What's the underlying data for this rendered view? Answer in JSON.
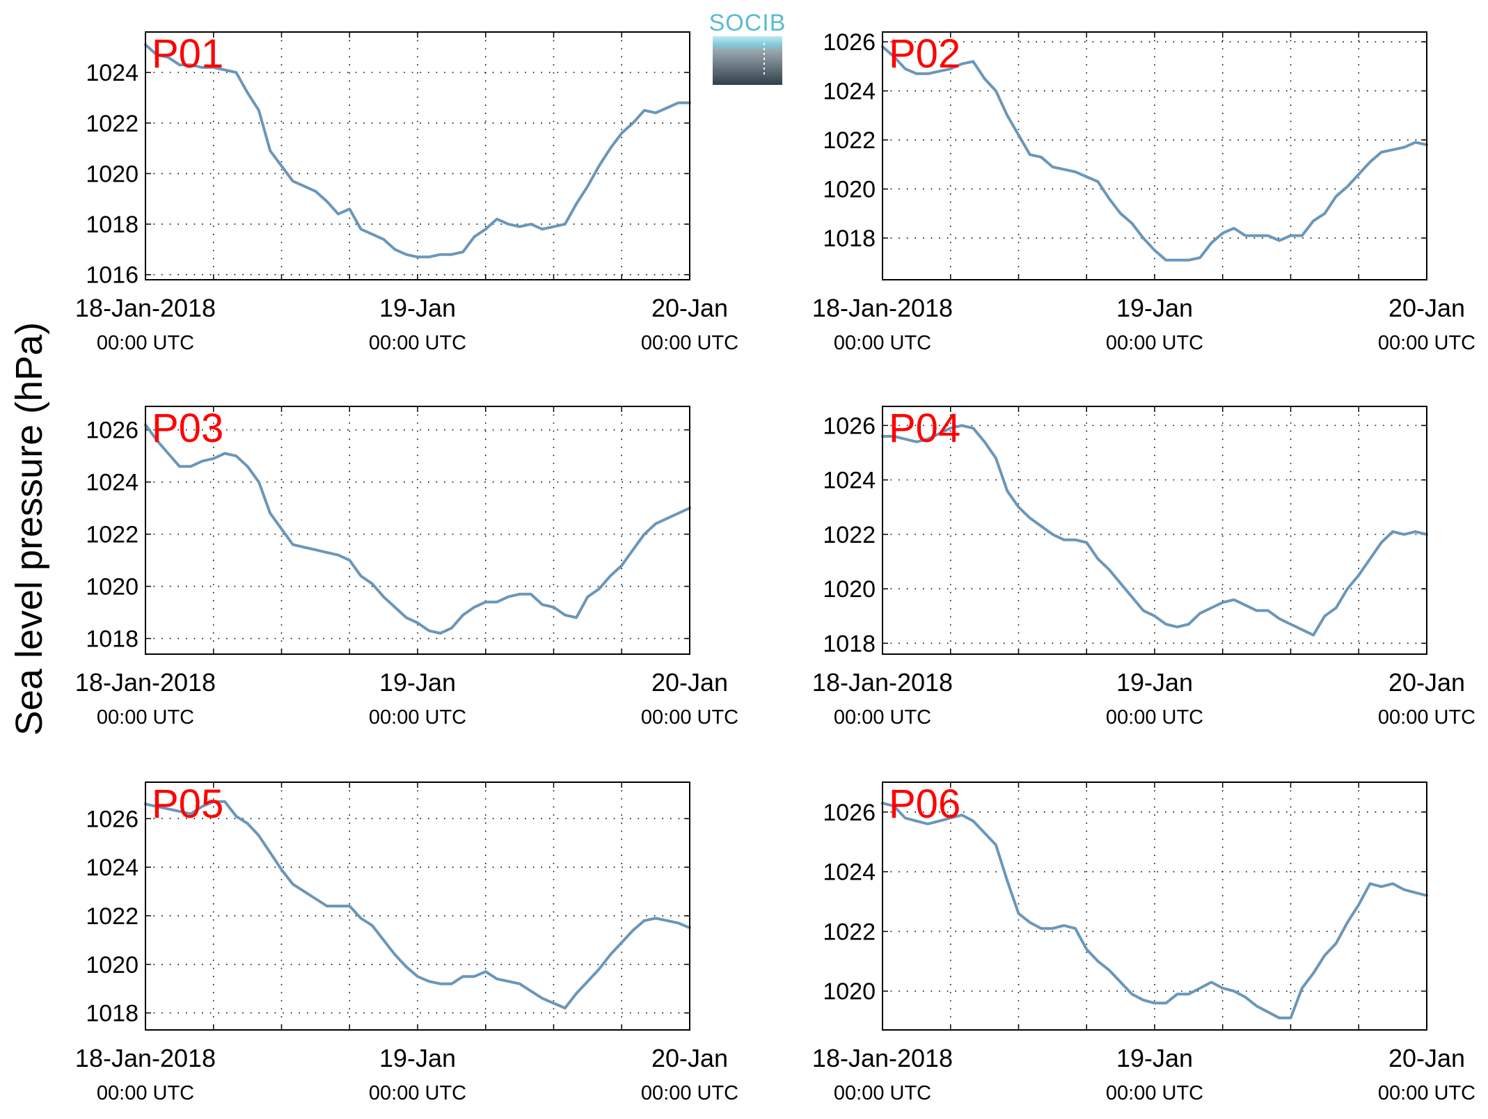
{
  "figure": {
    "ylabel": "Sea level pressure (hPa)",
    "line_color": "#6a97ba",
    "label_color": "#ff0000",
    "logo": {
      "text": "SOCIB",
      "color": "#5bbbd0"
    }
  },
  "chart_data": [
    {
      "type": "line",
      "label": "P01",
      "x_tick_labels": [
        [
          "18-Jan-2018",
          "00:00 UTC"
        ],
        [
          "19-Jan",
          "00:00 UTC"
        ],
        [
          "20-Jan",
          "00:00 UTC"
        ]
      ],
      "yticks": [
        1016,
        1018,
        1020,
        1022,
        1024
      ],
      "ylim": [
        1015.8,
        1025.6
      ],
      "xlim": [
        0,
        48
      ],
      "grid": true,
      "series": [
        {
          "x": [
            0,
            1,
            2,
            3,
            4,
            5,
            6,
            8,
            9,
            10,
            11,
            12,
            13,
            14,
            15,
            16,
            17,
            18,
            19,
            20,
            21,
            22,
            23,
            24,
            25,
            26,
            27,
            28,
            29,
            30,
            31,
            32,
            33,
            34,
            35,
            36,
            37,
            38,
            39,
            40,
            41,
            42,
            43,
            44,
            45,
            46,
            47,
            48
          ],
          "y": [
            1025.1,
            1024.7,
            1024.6,
            1024.3,
            1024.3,
            1024.2,
            1024.2,
            1024.0,
            1023.2,
            1022.5,
            1020.9,
            1020.3,
            1019.7,
            1019.5,
            1019.3,
            1018.9,
            1018.4,
            1018.6,
            1017.8,
            1017.6,
            1017.4,
            1017.0,
            1016.8,
            1016.7,
            1016.7,
            1016.8,
            1016.8,
            1016.9,
            1017.5,
            1017.8,
            1018.2,
            1018.0,
            1017.9,
            1018.0,
            1017.8,
            1017.9,
            1018.0,
            1018.8,
            1019.5,
            1020.3,
            1021.0,
            1021.6,
            1022.0,
            1022.5,
            1022.4,
            1022.6,
            1022.8,
            1022.8
          ]
        }
      ]
    },
    {
      "type": "line",
      "label": "P02",
      "x_tick_labels": [
        [
          "18-Jan-2018",
          "00:00 UTC"
        ],
        [
          "19-Jan",
          "00:00 UTC"
        ],
        [
          "20-Jan",
          "00:00 UTC"
        ]
      ],
      "yticks": [
        1018,
        1020,
        1022,
        1024,
        1026
      ],
      "ylim": [
        1016.3,
        1026.4
      ],
      "xlim": [
        0,
        48
      ],
      "grid": true,
      "series": [
        {
          "x": [
            0,
            1,
            2,
            3,
            4,
            5,
            6,
            7,
            8,
            9,
            10,
            11,
            12,
            13,
            14,
            15,
            16,
            17,
            18,
            19,
            20,
            21,
            22,
            23,
            24,
            25,
            26,
            27,
            28,
            29,
            30,
            31,
            32,
            33,
            34,
            35,
            36,
            37,
            38,
            39,
            40,
            41,
            42,
            43,
            44,
            45,
            46,
            47,
            48
          ],
          "y": [
            1025.8,
            1025.4,
            1024.9,
            1024.7,
            1024.7,
            1024.8,
            1024.9,
            1025.1,
            1025.2,
            1024.5,
            1024.0,
            1023.0,
            1022.2,
            1021.4,
            1021.3,
            1020.9,
            1020.8,
            1020.7,
            1020.5,
            1020.3,
            1019.6,
            1019.0,
            1018.6,
            1018.0,
            1017.5,
            1017.1,
            1017.1,
            1017.1,
            1017.2,
            1017.8,
            1018.2,
            1018.4,
            1018.1,
            1018.1,
            1018.1,
            1017.9,
            1018.1,
            1018.1,
            1018.7,
            1019.0,
            1019.7,
            1020.1,
            1020.6,
            1021.1,
            1021.5,
            1021.6,
            1021.7,
            1021.9,
            1021.8
          ]
        }
      ]
    },
    {
      "type": "line",
      "label": "P03",
      "x_tick_labels": [
        [
          "18-Jan-2018",
          "00:00 UTC"
        ],
        [
          "19-Jan",
          "00:00 UTC"
        ],
        [
          "20-Jan",
          "00:00 UTC"
        ]
      ],
      "yticks": [
        1018,
        1020,
        1022,
        1024,
        1026
      ],
      "ylim": [
        1017.4,
        1026.9
      ],
      "xlim": [
        0,
        48
      ],
      "grid": true,
      "series": [
        {
          "x": [
            0,
            1,
            2,
            3,
            4,
            5,
            6,
            7,
            8,
            9,
            10,
            11,
            12,
            13,
            14,
            15,
            16,
            17,
            18,
            19,
            20,
            21,
            22,
            23,
            24,
            25,
            26,
            27,
            28,
            29,
            30,
            31,
            32,
            33,
            34,
            35,
            36,
            37,
            38,
            39,
            40,
            41,
            42,
            43,
            44,
            45,
            46,
            47,
            48
          ],
          "y": [
            1026.2,
            1025.6,
            1025.1,
            1024.6,
            1024.6,
            1024.8,
            1024.9,
            1025.1,
            1025.0,
            1024.6,
            1024.0,
            1022.8,
            1022.2,
            1021.6,
            1021.5,
            1021.4,
            1021.3,
            1021.2,
            1021.0,
            1020.4,
            1020.1,
            1019.6,
            1019.2,
            1018.8,
            1018.6,
            1018.3,
            1018.2,
            1018.4,
            1018.9,
            1019.2,
            1019.4,
            1019.4,
            1019.6,
            1019.7,
            1019.7,
            1019.3,
            1019.2,
            1018.9,
            1018.8,
            1019.6,
            1019.9,
            1020.4,
            1020.8,
            1021.4,
            1022.0,
            1022.4,
            1022.6,
            1022.8,
            1023.0
          ]
        }
      ]
    },
    {
      "type": "line",
      "label": "P04",
      "x_tick_labels": [
        [
          "18-Jan-2018",
          "00:00 UTC"
        ],
        [
          "19-Jan",
          "00:00 UTC"
        ],
        [
          "20-Jan",
          "00:00 UTC"
        ]
      ],
      "yticks": [
        1018,
        1020,
        1022,
        1024,
        1026
      ],
      "ylim": [
        1017.6,
        1026.7
      ],
      "xlim": [
        0,
        48
      ],
      "grid": true,
      "series": [
        {
          "x": [
            0,
            1,
            2,
            3,
            4,
            5,
            6,
            7,
            8,
            9,
            10,
            11,
            12,
            13,
            14,
            15,
            16,
            17,
            18,
            19,
            20,
            21,
            22,
            23,
            24,
            25,
            26,
            27,
            28,
            29,
            30,
            31,
            32,
            33,
            34,
            35,
            36,
            37,
            38,
            39,
            40,
            41,
            42,
            43,
            44,
            45,
            46,
            47,
            48
          ],
          "y": [
            1025.6,
            1025.6,
            1025.5,
            1025.4,
            1025.5,
            1025.7,
            1025.9,
            1026.0,
            1025.9,
            1025.4,
            1024.8,
            1023.6,
            1023.0,
            1022.6,
            1022.3,
            1022.0,
            1021.8,
            1021.8,
            1021.7,
            1021.1,
            1020.7,
            1020.2,
            1019.7,
            1019.2,
            1019.0,
            1018.7,
            1018.6,
            1018.7,
            1019.1,
            1019.3,
            1019.5,
            1019.6,
            1019.4,
            1019.2,
            1019.2,
            1018.9,
            1018.7,
            1018.5,
            1018.3,
            1019.0,
            1019.3,
            1020.0,
            1020.5,
            1021.1,
            1021.7,
            1022.1,
            1022.0,
            1022.1,
            1022.0
          ]
        }
      ]
    },
    {
      "type": "line",
      "label": "P05",
      "x_tick_labels": [
        [
          "18-Jan-2018",
          "00:00 UTC"
        ],
        [
          "19-Jan",
          "00:00 UTC"
        ],
        [
          "20-Jan",
          "00:00 UTC"
        ]
      ],
      "yticks": [
        1018,
        1020,
        1022,
        1024,
        1026
      ],
      "ylim": [
        1017.3,
        1027.5
      ],
      "xlim": [
        0,
        48
      ],
      "grid": true,
      "series": [
        {
          "x": [
            0,
            1,
            2,
            3,
            4,
            5,
            6,
            7,
            8,
            9,
            10,
            11,
            12,
            13,
            14,
            15,
            16,
            17,
            18,
            19,
            20,
            21,
            22,
            23,
            24,
            25,
            26,
            27,
            28,
            29,
            30,
            31,
            32,
            33,
            34,
            35,
            36,
            37,
            38,
            39,
            40,
            41,
            42,
            43,
            44,
            45,
            46,
            47,
            48
          ],
          "y": [
            1026.6,
            1026.5,
            1026.4,
            1026.3,
            1026.2,
            1026.5,
            1026.7,
            1026.7,
            1026.1,
            1025.8,
            1025.3,
            1024.6,
            1023.9,
            1023.3,
            1023.0,
            1022.7,
            1022.4,
            1022.4,
            1022.4,
            1021.9,
            1021.6,
            1021.0,
            1020.4,
            1019.9,
            1019.5,
            1019.3,
            1019.2,
            1019.2,
            1019.5,
            1019.5,
            1019.7,
            1019.4,
            1019.3,
            1019.2,
            1018.9,
            1018.6,
            1018.4,
            1018.2,
            1018.8,
            1019.3,
            1019.8,
            1020.4,
            1020.9,
            1021.4,
            1021.8,
            1021.9,
            1021.8,
            1021.7,
            1021.5
          ]
        }
      ]
    },
    {
      "type": "line",
      "label": "P06",
      "x_tick_labels": [
        [
          "18-Jan-2018",
          "00:00 UTC"
        ],
        [
          "19-Jan",
          "00:00 UTC"
        ],
        [
          "20-Jan",
          "00:00 UTC"
        ]
      ],
      "yticks": [
        1020,
        1022,
        1024,
        1026
      ],
      "ylim": [
        1018.7,
        1027.0
      ],
      "xlim": [
        0,
        48
      ],
      "grid": true,
      "series": [
        {
          "x": [
            0,
            1,
            2,
            3,
            4,
            5,
            6,
            7,
            8,
            9,
            10,
            11,
            12,
            13,
            14,
            15,
            16,
            17,
            18,
            19,
            20,
            21,
            22,
            23,
            24,
            25,
            26,
            27,
            28,
            29,
            30,
            31,
            32,
            33,
            34,
            35,
            36,
            37,
            38,
            39,
            40,
            41,
            42,
            43,
            44,
            45,
            46,
            47,
            48
          ],
          "y": [
            1026.3,
            1026.2,
            1025.8,
            1025.7,
            1025.6,
            1025.7,
            1025.8,
            1025.9,
            1025.7,
            1025.3,
            1024.9,
            1023.7,
            1022.6,
            1022.3,
            1022.1,
            1022.1,
            1022.2,
            1022.1,
            1021.4,
            1021.0,
            1020.7,
            1020.3,
            1019.9,
            1019.7,
            1019.6,
            1019.6,
            1019.9,
            1019.9,
            1020.1,
            1020.3,
            1020.1,
            1020.0,
            1019.8,
            1019.5,
            1019.3,
            1019.1,
            1019.1,
            1020.1,
            1020.6,
            1021.2,
            1021.6,
            1022.3,
            1022.9,
            1023.6,
            1023.5,
            1023.6,
            1023.4,
            1023.3,
            1023.2
          ]
        }
      ]
    }
  ]
}
